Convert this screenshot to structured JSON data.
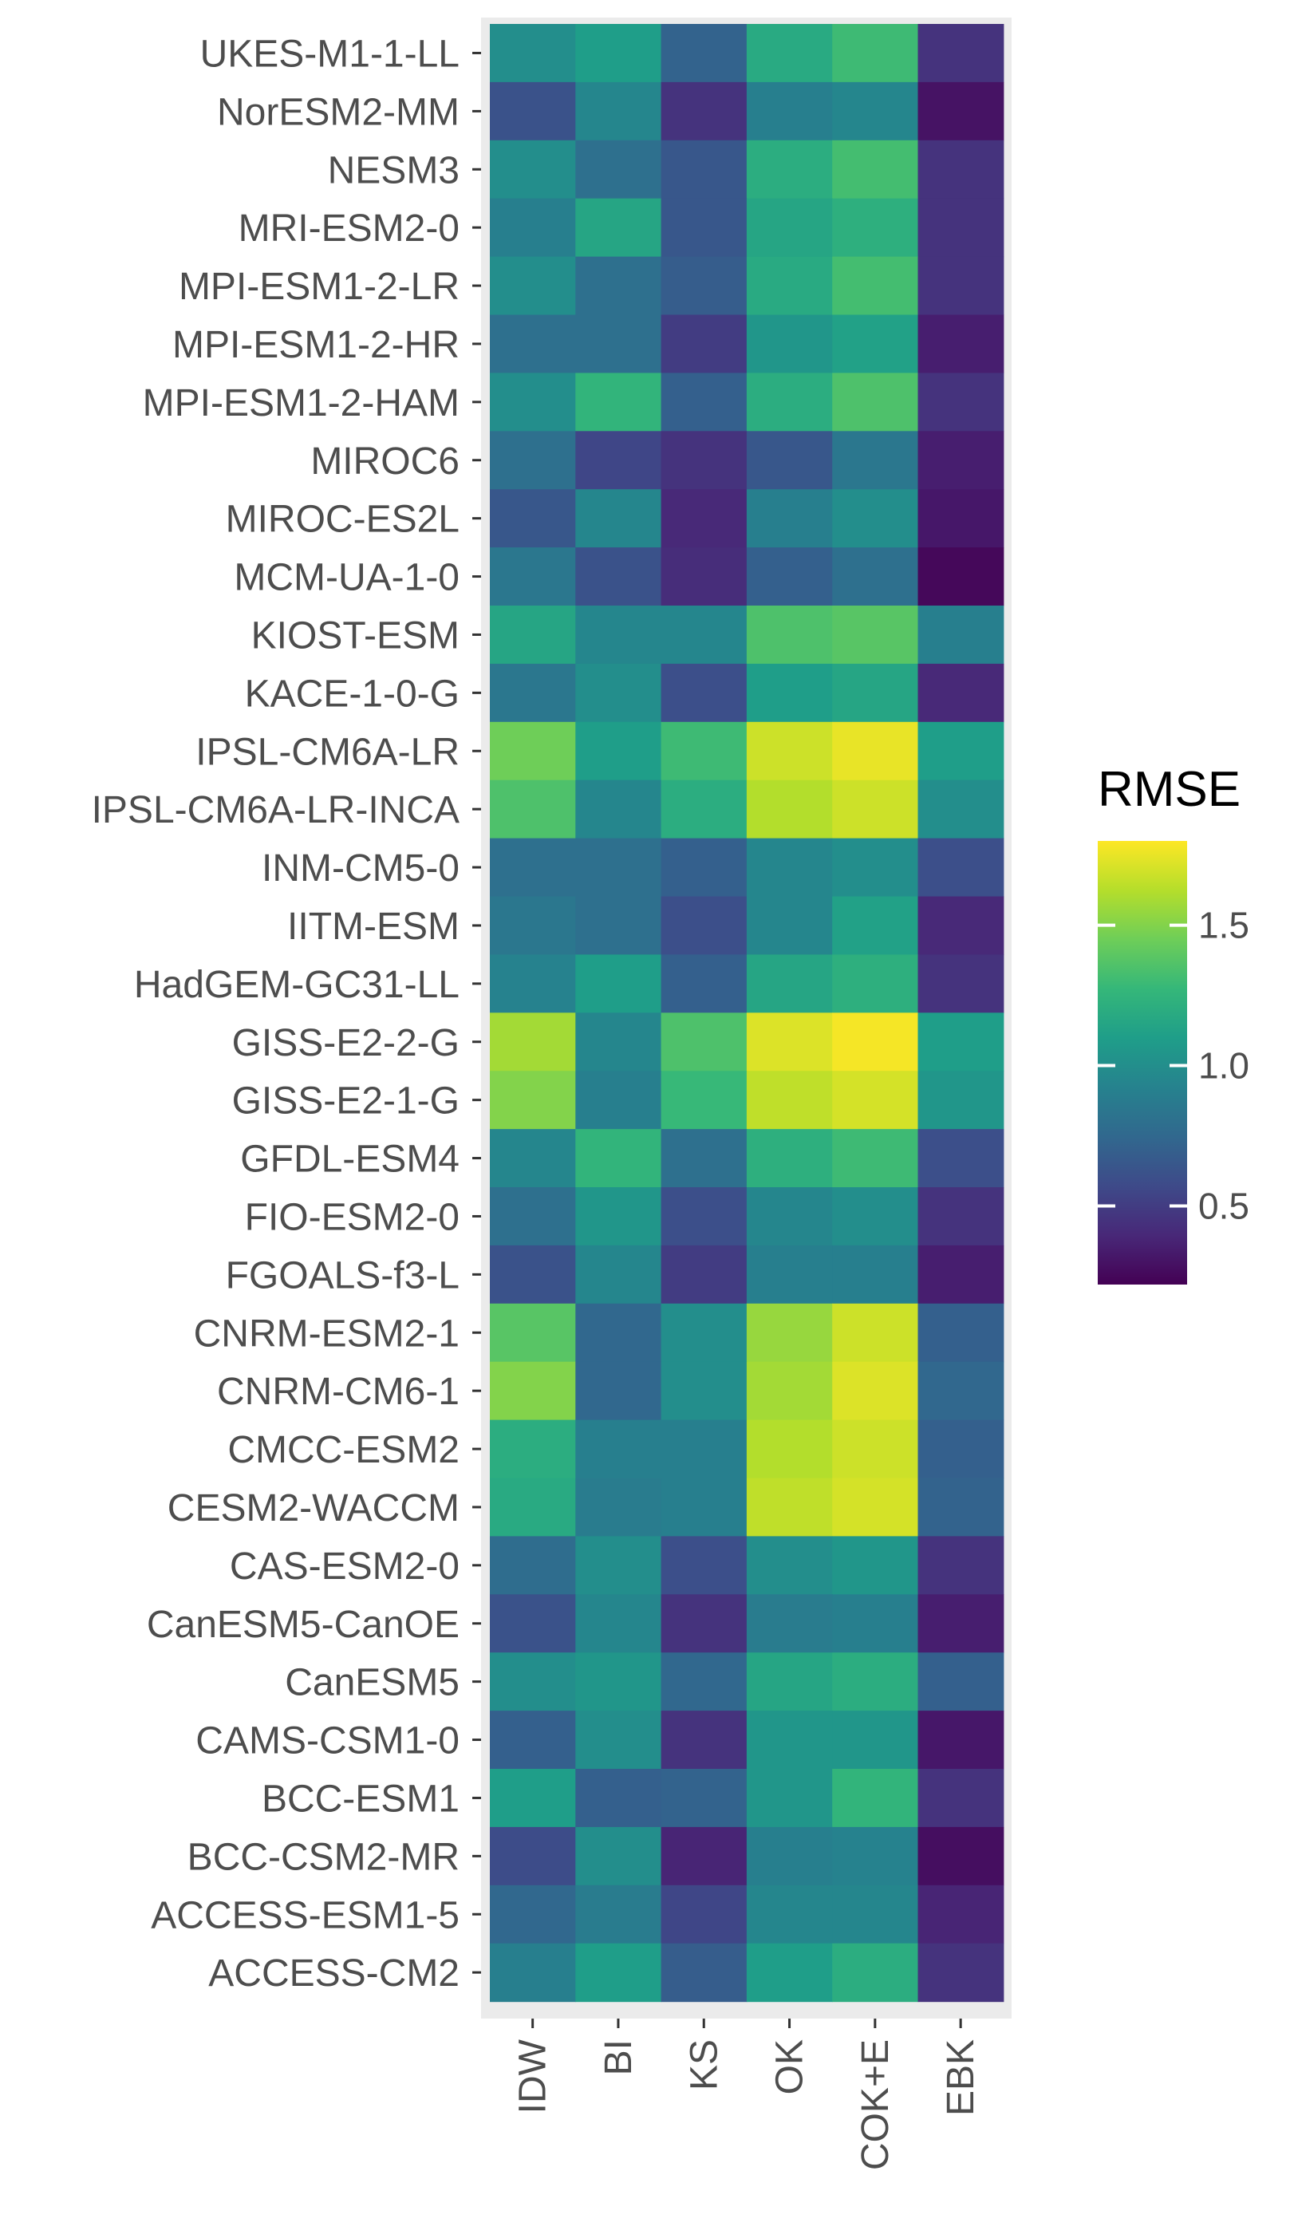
{
  "chart_data": {
    "type": "heatmap",
    "title": "",
    "xlabel": "",
    "ylabel": "",
    "x_categories": [
      "IDW",
      "BI",
      "KS",
      "OK",
      "COK+E",
      "EBK"
    ],
    "y_categories": [
      "UKES-M1-1-LL",
      "NorESM2-MM",
      "NESM3",
      "MRI-ESM2-0",
      "MPI-ESM1-2-LR",
      "MPI-ESM1-2-HR",
      "MPI-ESM1-2-HAM",
      "MIROC6",
      "MIROC-ES2L",
      "MCM-UA-1-0",
      "KIOST-ESM",
      "KACE-1-0-G",
      "IPSL-CM6A-LR",
      "IPSL-CM6A-LR-INCA",
      "INM-CM5-0",
      "IITM-ESM",
      "HadGEM-GC31-LL",
      "GISS-E2-2-G",
      "GISS-E2-1-G",
      "GFDL-ESM4",
      "FIO-ESM2-0",
      "FGOALS-f3-L",
      "CNRM-ESM2-1",
      "CNRM-CM6-1",
      "CMCC-ESM2",
      "CESM2-WACCM",
      "CAS-ESM2-0",
      "CanESM5-CanOE",
      "CanESM5",
      "CAMS-CSM1-0",
      "BCC-ESM1",
      "BCC-CSM2-MR",
      "ACCESS-ESM1-5",
      "ACCESS-CM2"
    ],
    "values": [
      [
        1.0,
        1.1,
        0.72,
        1.18,
        1.3,
        0.45
      ],
      [
        0.62,
        0.95,
        0.45,
        0.9,
        0.95,
        0.3
      ],
      [
        1.0,
        0.8,
        0.65,
        1.2,
        1.32,
        0.45
      ],
      [
        0.9,
        1.15,
        0.65,
        1.15,
        1.22,
        0.45
      ],
      [
        1.0,
        0.8,
        0.68,
        1.18,
        1.32,
        0.45
      ],
      [
        0.8,
        0.8,
        0.5,
        1.05,
        1.12,
        0.35
      ],
      [
        1.0,
        1.25,
        0.7,
        1.2,
        1.35,
        0.45
      ],
      [
        0.8,
        0.55,
        0.45,
        0.65,
        0.85,
        0.35
      ],
      [
        0.65,
        0.95,
        0.4,
        0.9,
        1.0,
        0.32
      ],
      [
        0.85,
        0.62,
        0.42,
        0.7,
        0.8,
        0.25
      ],
      [
        1.15,
        0.95,
        0.95,
        1.35,
        1.38,
        0.9
      ],
      [
        0.85,
        1.0,
        0.6,
        1.1,
        1.15,
        0.4
      ],
      [
        1.45,
        1.1,
        1.3,
        1.68,
        1.75,
        1.1
      ],
      [
        1.35,
        0.95,
        1.2,
        1.62,
        1.68,
        1.0
      ],
      [
        0.8,
        0.8,
        0.7,
        0.95,
        1.0,
        0.6
      ],
      [
        0.85,
        0.8,
        0.6,
        0.95,
        1.12,
        0.4
      ],
      [
        0.92,
        1.1,
        0.7,
        1.15,
        1.22,
        0.45
      ],
      [
        1.58,
        0.95,
        1.35,
        1.72,
        1.78,
        1.1
      ],
      [
        1.5,
        0.9,
        1.28,
        1.65,
        1.7,
        1.05
      ],
      [
        0.95,
        1.25,
        0.8,
        1.22,
        1.3,
        0.6
      ],
      [
        0.8,
        1.05,
        0.6,
        0.95,
        1.0,
        0.45
      ],
      [
        0.62,
        0.95,
        0.5,
        0.9,
        0.9,
        0.35
      ],
      [
        1.38,
        0.75,
        1.0,
        1.55,
        1.68,
        0.7
      ],
      [
        1.5,
        0.75,
        1.0,
        1.58,
        1.72,
        0.75
      ],
      [
        1.2,
        0.9,
        0.9,
        1.62,
        1.68,
        0.7
      ],
      [
        1.18,
        0.88,
        0.9,
        1.65,
        1.7,
        0.72
      ],
      [
        0.78,
        1.0,
        0.6,
        1.0,
        1.05,
        0.45
      ],
      [
        0.62,
        0.95,
        0.45,
        0.88,
        0.9,
        0.35
      ],
      [
        1.0,
        1.05,
        0.75,
        1.15,
        1.2,
        0.7
      ],
      [
        0.7,
        1.0,
        0.45,
        1.05,
        1.05,
        0.32
      ],
      [
        1.1,
        0.7,
        0.72,
        1.05,
        1.25,
        0.45
      ],
      [
        0.58,
        1.0,
        0.38,
        0.9,
        0.92,
        0.28
      ],
      [
        0.75,
        0.88,
        0.55,
        0.95,
        0.95,
        0.38
      ],
      [
        0.9,
        1.1,
        0.68,
        1.1,
        1.2,
        0.45
      ]
    ],
    "legend": {
      "title": "RMSE",
      "placement": "right",
      "min": 0.22,
      "max": 1.8,
      "ticks": [
        0.5,
        1.0,
        1.5
      ],
      "tick_labels": [
        "0.5",
        "1.0",
        "1.5"
      ],
      "palette": [
        "#440154",
        "#482878",
        "#3e4a89",
        "#31688e",
        "#26828e",
        "#1f9e89",
        "#35b779",
        "#6ece58",
        "#b5de2b",
        "#fde725"
      ]
    }
  }
}
